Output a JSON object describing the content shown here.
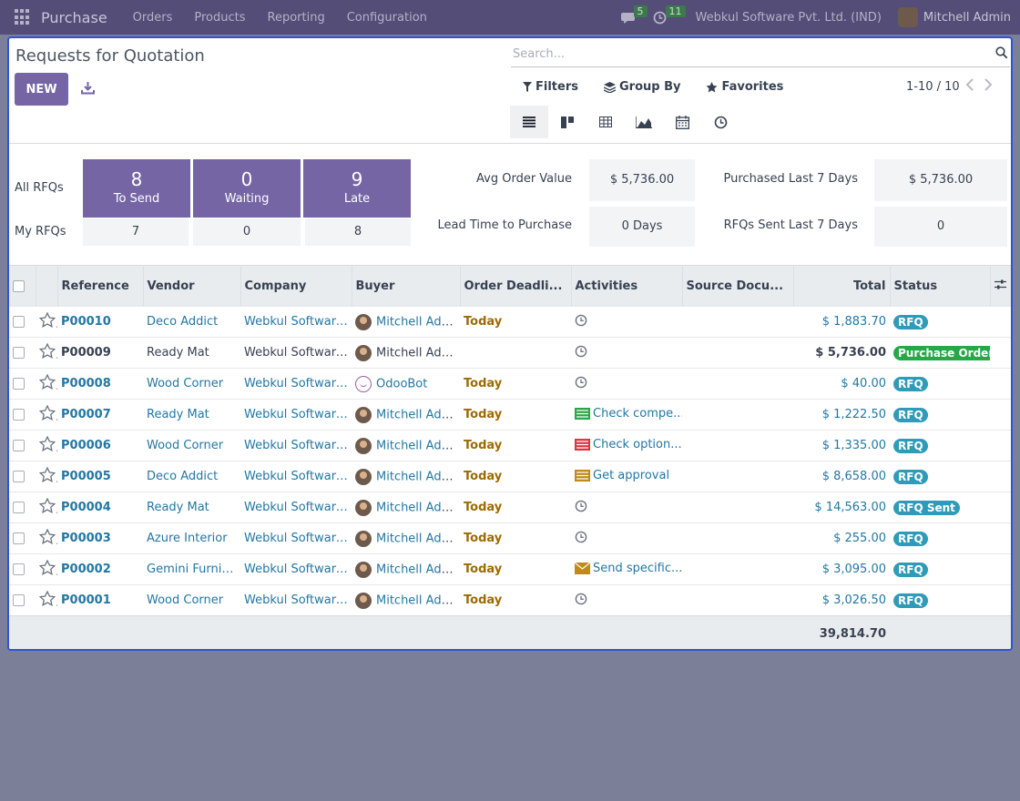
{
  "app": {
    "name": "Purchase",
    "menu": [
      "Orders",
      "Products",
      "Reporting",
      "Configuration"
    ],
    "messages_count": "5",
    "activities_count": "11",
    "company": "Webkul Software Pvt. Ltd. (IND)",
    "user": "Mitchell Admin"
  },
  "control_panel": {
    "title": "Requests for Quotation",
    "new_label": "NEW",
    "search_placeholder": "Search...",
    "filters_label": "Filters",
    "group_by_label": "Group By",
    "favorites_label": "Favorites",
    "pager": "1-10 / 10"
  },
  "dashboard": {
    "all_rfqs_label": "All RFQs",
    "my_rfqs_label": "My RFQs",
    "tiles": [
      {
        "num": "8",
        "label": "To Send",
        "mine": "7"
      },
      {
        "num": "0",
        "label": "Waiting",
        "mine": "0"
      },
      {
        "num": "9",
        "label": "Late",
        "mine": "8"
      }
    ],
    "kpis": [
      {
        "label": "Avg Order Value",
        "value": "$ 5,736.00"
      },
      {
        "label": "Lead Time to Purchase",
        "value": "0 Days"
      },
      {
        "label": "Purchased Last 7 Days",
        "value": "$ 5,736.00"
      },
      {
        "label": "RFQs Sent Last 7 Days",
        "value": "0"
      }
    ]
  },
  "table": {
    "headers": [
      "Reference",
      "Vendor",
      "Company",
      "Buyer",
      "Order Deadli...",
      "Activities",
      "Source Docu...",
      "Total",
      "Status"
    ],
    "rows": [
      {
        "ref": "P00010",
        "vendor": "Deco Addict",
        "company": "Webkul Software...",
        "buyer": "Mitchell Admin",
        "deadline": "Today",
        "activity": "",
        "activity_type": "clock",
        "total": "$ 1,883.70",
        "status": "RFQ"
      },
      {
        "ref": "P00009",
        "vendor": "Ready Mat",
        "company": "Webkul Software...",
        "buyer": "Mitchell Admin",
        "deadline": "",
        "activity": "",
        "activity_type": "clock",
        "total": "$ 5,736.00",
        "status": "Purchase Order"
      },
      {
        "ref": "P00008",
        "vendor": "Wood Corner",
        "company": "Webkul Software...",
        "buyer": "OdooBot",
        "deadline": "Today",
        "activity": "",
        "activity_type": "clock",
        "total": "$ 40.00",
        "status": "RFQ"
      },
      {
        "ref": "P00007",
        "vendor": "Ready Mat",
        "company": "Webkul Software...",
        "buyer": "Mitchell Admin",
        "deadline": "Today",
        "activity": "Check compe...",
        "activity_type": "todo-green",
        "total": "$ 1,222.50",
        "status": "RFQ"
      },
      {
        "ref": "P00006",
        "vendor": "Wood Corner",
        "company": "Webkul Software...",
        "buyer": "Mitchell Admin",
        "deadline": "Today",
        "activity": "Check option...",
        "activity_type": "todo-red",
        "total": "$ 1,335.00",
        "status": "RFQ"
      },
      {
        "ref": "P00005",
        "vendor": "Deco Addict",
        "company": "Webkul Software...",
        "buyer": "Mitchell Admin",
        "deadline": "Today",
        "activity": "Get approval",
        "activity_type": "todo-orange",
        "total": "$ 8,658.00",
        "status": "RFQ"
      },
      {
        "ref": "P00004",
        "vendor": "Ready Mat",
        "company": "Webkul Software...",
        "buyer": "Mitchell Admin",
        "deadline": "Today",
        "activity": "",
        "activity_type": "clock",
        "total": "$ 14,563.00",
        "status": "RFQ Sent"
      },
      {
        "ref": "P00003",
        "vendor": "Azure Interior",
        "company": "Webkul Software...",
        "buyer": "Mitchell Admin",
        "deadline": "Today",
        "activity": "",
        "activity_type": "clock",
        "total": "$ 255.00",
        "status": "RFQ"
      },
      {
        "ref": "P00002",
        "vendor": "Gemini Furniture",
        "company": "Webkul Software...",
        "buyer": "Mitchell Admin",
        "deadline": "Today",
        "activity": "Send specific...",
        "activity_type": "email-orange",
        "total": "$ 3,095.00",
        "status": "RFQ"
      },
      {
        "ref": "P00001",
        "vendor": "Wood Corner",
        "company": "Webkul Software...",
        "buyer": "Mitchell Admin",
        "deadline": "Today",
        "activity": "",
        "activity_type": "clock",
        "total": "$ 3,026.50",
        "status": "RFQ"
      }
    ],
    "footer_total": "39,814.70"
  },
  "colors": {
    "nav": "#534d78",
    "primary": "#7565a5",
    "link": "#2377a3",
    "today": "#9c6b00",
    "rfq_badge": "#2f9bb8",
    "po_badge": "#28a745"
  }
}
